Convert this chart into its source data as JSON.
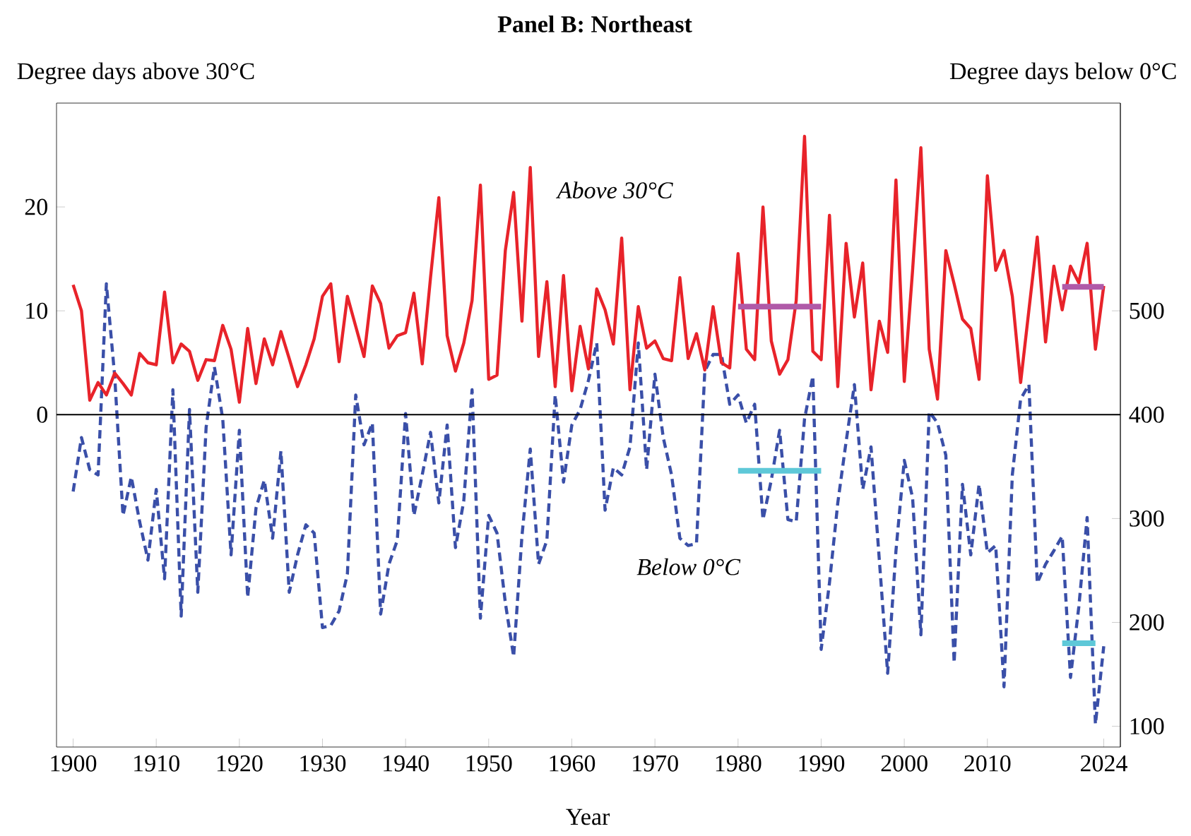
{
  "chart_data": {
    "type": "line",
    "title": "Panel B: Northeast",
    "xlabel": "Year",
    "ylabel": "Degree days above 30°C",
    "y2label": "Degree days below 0°C",
    "x": [
      1900,
      1901,
      1902,
      1903,
      1904,
      1905,
      1906,
      1907,
      1908,
      1909,
      1910,
      1911,
      1912,
      1913,
      1914,
      1915,
      1916,
      1917,
      1918,
      1919,
      1920,
      1921,
      1922,
      1923,
      1924,
      1925,
      1926,
      1927,
      1928,
      1929,
      1930,
      1931,
      1932,
      1933,
      1934,
      1935,
      1936,
      1937,
      1938,
      1939,
      1940,
      1941,
      1942,
      1943,
      1944,
      1945,
      1946,
      1947,
      1948,
      1949,
      1950,
      1951,
      1952,
      1953,
      1954,
      1955,
      1956,
      1957,
      1958,
      1959,
      1960,
      1961,
      1962,
      1963,
      1964,
      1965,
      1966,
      1967,
      1968,
      1969,
      1970,
      1971,
      1972,
      1973,
      1974,
      1975,
      1976,
      1977,
      1978,
      1979,
      1980,
      1981,
      1982,
      1983,
      1984,
      1985,
      1986,
      1987,
      1988,
      1989,
      1990,
      1991,
      1992,
      1993,
      1994,
      1995,
      1996,
      1997,
      1998,
      1999,
      2000,
      2001,
      2002,
      2003,
      2004,
      2005,
      2006,
      2007,
      2008,
      2009,
      2010,
      2011,
      2012,
      2013,
      2014,
      2015,
      2016,
      2017,
      2018,
      2019,
      2020,
      2021,
      2022,
      2023,
      2024
    ],
    "series": [
      {
        "name": "Above 30°C",
        "color": "#e8232a",
        "line_style": "solid",
        "values": [
          12.5,
          10,
          1.4,
          3.1,
          1.9,
          4,
          3,
          1.9,
          5.9,
          5,
          4.8,
          11.8,
          5,
          6.8,
          6.1,
          3.3,
          5.3,
          5.2,
          8.6,
          6.3,
          1.2,
          8.3,
          3,
          7.3,
          4.8,
          8,
          5.4,
          2.7,
          4.8,
          7.3,
          11.4,
          12.6,
          5.1,
          11.4,
          8.5,
          5.6,
          12.4,
          10.7,
          6.4,
          7.6,
          7.9,
          11.7,
          4.9,
          13.2,
          20.9,
          7.6,
          4.2,
          6.9,
          11,
          22.1,
          3.4,
          3.8,
          15.8,
          21.4,
          9,
          23.8,
          5.6,
          12.8,
          2.7,
          13.4,
          2.3,
          8.5,
          4.4,
          12.1,
          10.1,
          6.8,
          17,
          2.4,
          10.4,
          6.4,
          7.1,
          5.4,
          5.2,
          13.2,
          5.4,
          7.8,
          4.3,
          10.4,
          5,
          4.5,
          15.5,
          6.3,
          5.3,
          20,
          7.1,
          3.9,
          5.3,
          11,
          26.8,
          6.1,
          5.3,
          19.2,
          2.7,
          16.5,
          9.4,
          14.6,
          2.4,
          9,
          6,
          22.6,
          3.2,
          13.9,
          25.7,
          6.3,
          1.5,
          15.8,
          12.6,
          9.2,
          8.3,
          3.4,
          23,
          13.9,
          15.8,
          11.4,
          3.1,
          10.1,
          17.1,
          7,
          14.3,
          10.1,
          14.3,
          12.7,
          16.5,
          6.3,
          12.4
        ]
      },
      {
        "name": "Below 0°C",
        "color": "#3a4fa8",
        "line_style": "dashed",
        "axis": "y2",
        "values": [
          326,
          378,
          347,
          342,
          526,
          437,
          303,
          340,
          297,
          260,
          328,
          242,
          424,
          206,
          405,
          229,
          388,
          446,
          396,
          265,
          385,
          224,
          310,
          337,
          281,
          365,
          229,
          265,
          294,
          286,
          195,
          197,
          211,
          247,
          419,
          371,
          392,
          208,
          256,
          279,
          401,
          303,
          342,
          383,
          315,
          390,
          272,
          317,
          424,
          204,
          303,
          286,
          219,
          167,
          283,
          367,
          256,
          279,
          419,
          335,
          390,
          405,
          433,
          469,
          308,
          349,
          342,
          369,
          469,
          347,
          439,
          378,
          342,
          281,
          274,
          276,
          442,
          458,
          458,
          410,
          419,
          392,
          410,
          299,
          337,
          385,
          299,
          297,
          396,
          437,
          174,
          238,
          315,
          374,
          429,
          328,
          369,
          260,
          151,
          269,
          356,
          320,
          188,
          403,
          392,
          361,
          161,
          333,
          265,
          333,
          267,
          274,
          138,
          342,
          415,
          429,
          238,
          256,
          269,
          283,
          147,
          215,
          301,
          102,
          177
        ]
      },
      {
        "color": "#b05aa8",
        "line_style": "solid",
        "x": [
          1980,
          1990,
          2000,
          2019,
          2024
        ],
        "values": [
          10.4,
          10.4,
          null,
          12.3,
          12.3
        ]
      },
      {
        "color": "#5ec8d8",
        "line_style": "solid",
        "axis": "y2",
        "x": [
          1980,
          1990,
          2000,
          2019,
          2023
        ],
        "values": [
          346,
          346,
          null,
          180,
          180
        ]
      }
    ],
    "xlim": [
      1898,
      2026
    ],
    "xticks": [
      1900,
      1910,
      1920,
      1930,
      1940,
      1950,
      1960,
      1970,
      1980,
      1990,
      2000,
      2010,
      2024
    ],
    "ylim": [
      -32,
      30
    ],
    "yticks": [
      0,
      10,
      20
    ],
    "y2lim": [
      80,
      700
    ],
    "y2ticks": [
      100,
      200,
      300,
      400,
      500
    ],
    "ref_lines": [
      {
        "axis": "y",
        "value": 0,
        "color": "#000000"
      }
    ],
    "marker": "none"
  }
}
